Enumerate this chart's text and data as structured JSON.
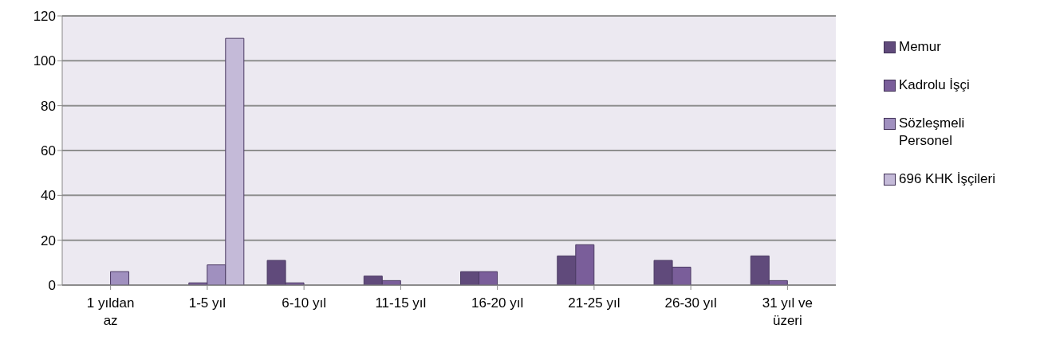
{
  "chart_data": {
    "type": "bar",
    "categories": [
      "1 yıldan az",
      "1-5 yıl",
      "6-10 yıl",
      "11-15 yıl",
      "16-20 yıl",
      "21-25 yıl",
      "26-30 yıl",
      "31 yıl ve üzeri"
    ],
    "series": [
      {
        "name": "Memur",
        "color": "#604a7b",
        "values": [
          0,
          0,
          11,
          4,
          6,
          13,
          11,
          13
        ]
      },
      {
        "name": "Kadrolu İşçi",
        "color": "#7a5e9a",
        "values": [
          0,
          1,
          1,
          2,
          6,
          18,
          8,
          2
        ]
      },
      {
        "name": "Sözleşmeli Personel",
        "color": "#a090bf",
        "values": [
          6,
          9,
          0,
          0,
          0,
          0,
          0,
          0
        ]
      },
      {
        "name": "696 KHK İşçileri",
        "color": "#c4bad8",
        "values": [
          0,
          110,
          0,
          0,
          0,
          0,
          0,
          0
        ]
      }
    ],
    "ylim": [
      0,
      120
    ],
    "yticks": [
      0,
      20,
      40,
      60,
      80,
      100,
      120
    ],
    "grid": "y",
    "legend": "right"
  }
}
